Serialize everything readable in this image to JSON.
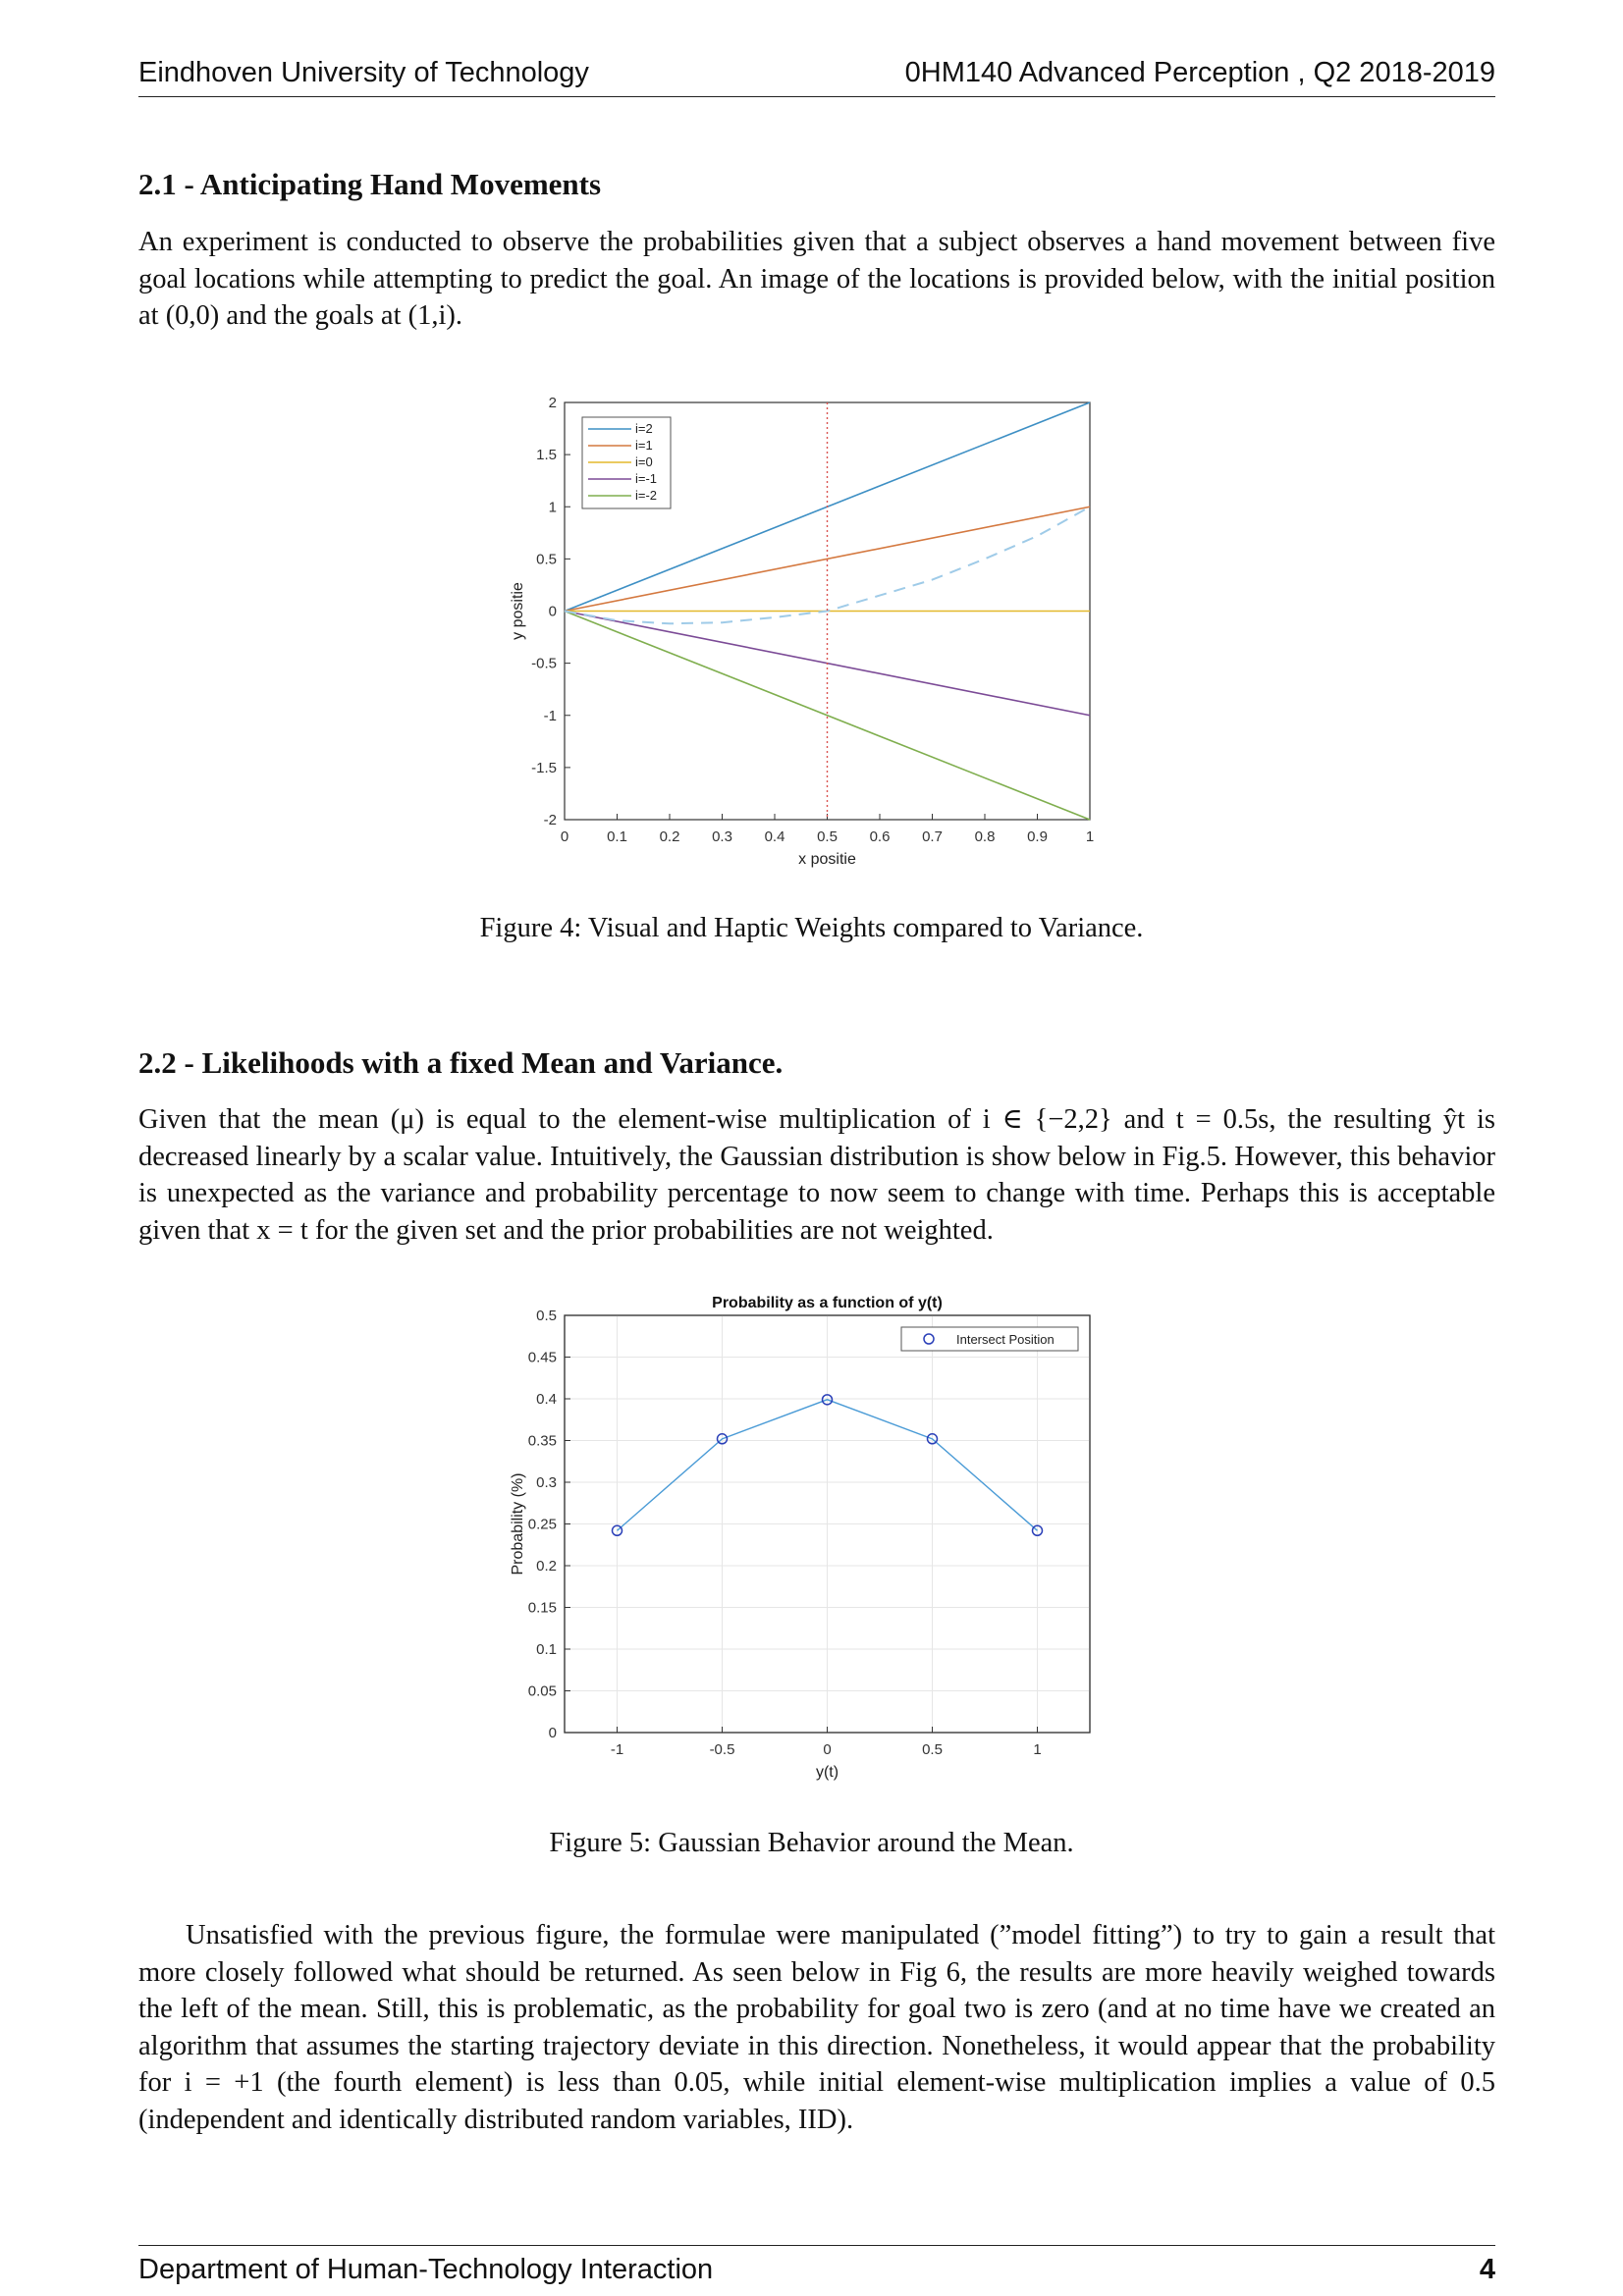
{
  "header": {
    "left": "Eindhoven University of Technology",
    "right": "0HM140 Advanced Perception , Q2 2018-2019"
  },
  "section1": {
    "title": "2.1 - Anticipating Hand Movements",
    "p1": "An experiment is conducted to observe the probabilities given that a subject observes a hand movement between five goal locations while attempting to predict the goal. An image of the locations is provided below, with the initial position at (0,0) and the goals at (1,i)."
  },
  "figure4": {
    "caption": "Figure 4: Visual and Haptic Weights compared to Variance."
  },
  "section2": {
    "title": "2.2 - Likelihoods with a fixed Mean and Variance.",
    "p1": "Given that the mean (μ) is equal to the element-wise multiplication of i ∈ {−2,2} and t = 0.5s, the resulting ŷt is decreased linearly by a scalar value. Intuitively, the Gaussian distribution is show below in Fig.5. However, this behavior is unexpected as the variance and probability percentage to now seem to change with time. Perhaps this is acceptable given that x = t for the given set and the prior probabilities are not weighted."
  },
  "figure5": {
    "caption": "Figure 5: Gaussian Behavior around the Mean."
  },
  "section3": {
    "p1": "Unsatisfied with the previous figure, the formulae were manipulated (”model fitting”) to try to gain a result that more closely followed what should be returned. As seen below in Fig 6, the results are more heavily weighed towards the left of the mean. Still, this is problematic, as the probability for goal two is zero (and at no time have we created an algorithm that assumes the starting trajectory deviate in this direction. Nonetheless, it would appear that the probability for i = +1 (the fourth element) is less than 0.05, while initial element-wise multiplication implies a value of 0.5 (independent and identically distributed random variables, IID)."
  },
  "footer": {
    "left": "Department of Human-Technology Interaction",
    "page": "4"
  },
  "chart_data": [
    {
      "type": "line",
      "title": "",
      "xlabel": "x positie",
      "ylabel": "y positie",
      "xlim": [
        0,
        1
      ],
      "ylim": [
        -2,
        2
      ],
      "xticks": [
        "0",
        "0.1",
        "0.2",
        "0.3",
        "0.4",
        "0.5",
        "0.6",
        "0.7",
        "0.8",
        "0.9",
        "1"
      ],
      "yticks": [
        "2",
        "1.5",
        "1",
        "0.5",
        "0",
        "-0.5",
        "-1",
        "-1.5",
        "-2"
      ],
      "grid": false,
      "legend": "top-left",
      "series": [
        {
          "name": "i=2",
          "color": "#3d8fc4",
          "x": [
            0,
            1
          ],
          "y": [
            0,
            2
          ]
        },
        {
          "name": "i=1",
          "color": "#d4783f",
          "x": [
            0,
            1
          ],
          "y": [
            0,
            1
          ]
        },
        {
          "name": "i=0",
          "color": "#e3b82b",
          "x": [
            0,
            1
          ],
          "y": [
            0,
            0
          ]
        },
        {
          "name": "i=-1",
          "color": "#7b4a96",
          "x": [
            0,
            1
          ],
          "y": [
            0,
            -1
          ]
        },
        {
          "name": "i=-2",
          "color": "#7fae4e",
          "x": [
            0,
            1
          ],
          "y": [
            0,
            -2
          ]
        }
      ],
      "trajectory": {
        "color": "#9fcbe8",
        "style": "dashed",
        "x": [
          0,
          0.1,
          0.2,
          0.3,
          0.4,
          0.5,
          0.6,
          0.7,
          0.8,
          0.9,
          1
        ],
        "y": [
          0,
          -0.09,
          -0.12,
          -0.11,
          -0.06,
          0,
          0.15,
          0.3,
          0.5,
          0.72,
          1
        ]
      },
      "vline": {
        "x": 0.5,
        "color": "#d9534f",
        "style": "dotted"
      }
    },
    {
      "type": "line",
      "title": "Probability as a function of y(t)",
      "xlabel": "y(t)",
      "ylabel": "Probability (%)",
      "xlim": [
        -1.25,
        1.25
      ],
      "ylim": [
        0,
        0.5
      ],
      "xticks": [
        "-1",
        "-0.5",
        "0",
        "0.5",
        "1"
      ],
      "yticks": [
        "0.5",
        "0.45",
        "0.4",
        "0.35",
        "0.3",
        "0.25",
        "0.2",
        "0.15",
        "0.1",
        "0.05",
        "0"
      ],
      "grid": true,
      "legend": "top-right",
      "series": [
        {
          "name": "Intersect Position",
          "color": "#2a3fb8",
          "line_color": "#4a9bd6",
          "x": [
            -1,
            -0.5,
            0,
            0.5,
            1
          ],
          "y": [
            0.242,
            0.352,
            0.399,
            0.352,
            0.242
          ]
        }
      ]
    }
  ]
}
